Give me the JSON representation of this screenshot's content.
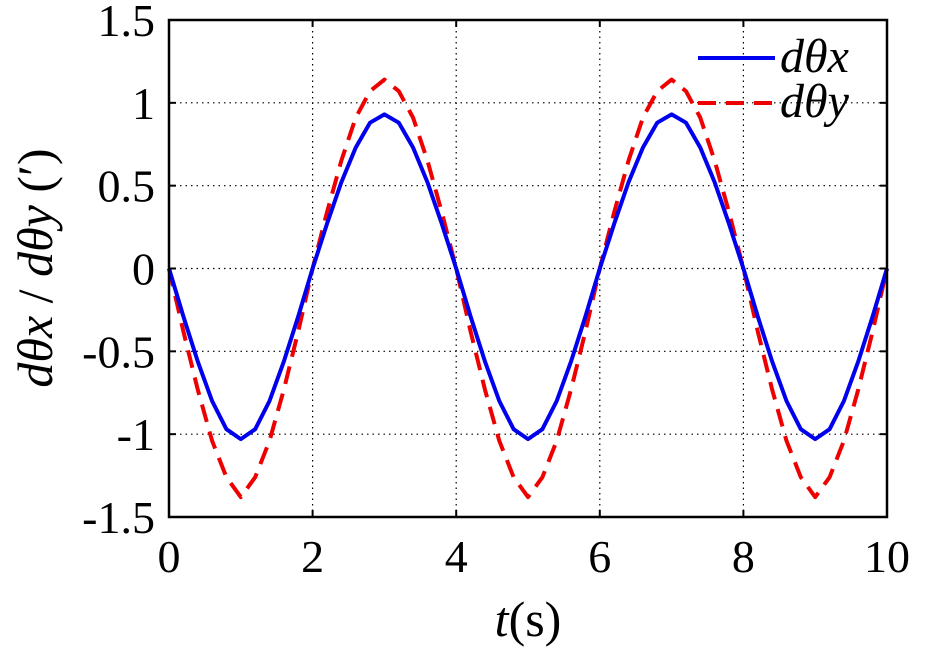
{
  "chart_data": {
    "type": "line",
    "x_ticks": [
      "0",
      "2",
      "4",
      "6",
      "8",
      "10"
    ],
    "y_ticks": [
      "-1.5",
      "-1",
      "-0.5",
      "0",
      "0.5",
      "1",
      "1.5"
    ],
    "xlim": [
      0,
      10
    ],
    "ylim": [
      -1.5,
      1.5
    ],
    "grid": true,
    "legend_position": "top-right",
    "xlabel": "t(s)",
    "ylabel": "dθx / dθy (′)",
    "series": [
      {
        "name": "dθx",
        "color": "#0000ee",
        "style": "solid",
        "x": [
          0,
          0.2,
          0.4,
          0.6,
          0.8,
          1.0,
          1.2,
          1.4,
          1.6,
          1.8,
          2.0,
          2.2,
          2.4,
          2.6,
          2.8,
          3.0,
          3.2,
          3.4,
          3.6,
          3.8,
          4.0,
          4.2,
          4.4,
          4.6,
          4.8,
          5.0,
          5.2,
          5.4,
          5.6,
          5.8,
          6.0,
          6.2,
          6.4,
          6.6,
          6.8,
          7.0,
          7.2,
          7.4,
          7.6,
          7.8,
          8.0,
          8.2,
          8.4,
          8.6,
          8.8,
          9.0,
          9.2,
          9.4,
          9.6,
          9.8,
          10.0
        ],
        "y": [
          0,
          -0.29,
          -0.56,
          -0.8,
          -0.97,
          -1.03,
          -0.97,
          -0.8,
          -0.56,
          -0.29,
          0,
          0.27,
          0.52,
          0.73,
          0.88,
          0.93,
          0.88,
          0.73,
          0.52,
          0.27,
          0,
          -0.29,
          -0.56,
          -0.8,
          -0.97,
          -1.03,
          -0.97,
          -0.8,
          -0.56,
          -0.29,
          0,
          0.27,
          0.52,
          0.73,
          0.88,
          0.93,
          0.88,
          0.73,
          0.52,
          0.27,
          0,
          -0.29,
          -0.56,
          -0.8,
          -0.97,
          -1.03,
          -0.97,
          -0.8,
          -0.56,
          -0.29,
          0
        ]
      },
      {
        "name": "dθy",
        "color": "#ee0000",
        "style": "dashed",
        "x": [
          0,
          0.2,
          0.4,
          0.6,
          0.8,
          1.0,
          1.2,
          1.4,
          1.6,
          1.8,
          2.0,
          2.2,
          2.4,
          2.6,
          2.8,
          3.0,
          3.2,
          3.4,
          3.6,
          3.8,
          4.0,
          4.2,
          4.4,
          4.6,
          4.8,
          5.0,
          5.2,
          5.4,
          5.6,
          5.8,
          6.0,
          6.2,
          6.4,
          6.6,
          6.8,
          7.0,
          7.2,
          7.4,
          7.6,
          7.8,
          8.0,
          8.2,
          8.4,
          8.6,
          8.8,
          9.0,
          9.2,
          9.4,
          9.6,
          9.8,
          10.0
        ],
        "y": [
          0,
          -0.38,
          -0.73,
          -1.04,
          -1.26,
          -1.38,
          -1.26,
          -1.04,
          -0.73,
          -0.38,
          0,
          0.34,
          0.65,
          0.91,
          1.07,
          1.14,
          1.07,
          0.91,
          0.65,
          0.34,
          0,
          -0.38,
          -0.73,
          -1.04,
          -1.26,
          -1.38,
          -1.26,
          -1.04,
          -0.73,
          -0.38,
          0,
          0.34,
          0.65,
          0.91,
          1.07,
          1.14,
          1.07,
          0.91,
          0.65,
          0.34,
          0,
          -0.38,
          -0.73,
          -1.04,
          -1.26,
          -1.38,
          -1.26,
          -1.04,
          -0.73,
          -0.38,
          0
        ]
      }
    ]
  }
}
